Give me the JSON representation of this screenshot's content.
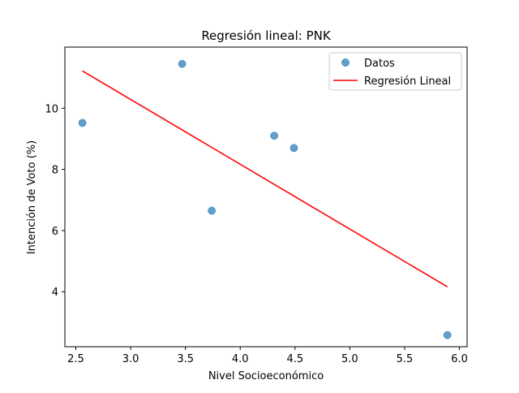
{
  "chart_data": {
    "type": "scatter",
    "title": "Regresión lineal: PNK",
    "xlabel": "Nivel Socioeconómico",
    "ylabel": "Intención de Voto (%)",
    "xlim": [
      2.4,
      6.07
    ],
    "ylim": [
      2.2,
      12.0
    ],
    "xticks": [
      2.5,
      3.0,
      3.5,
      4.0,
      4.5,
      5.0,
      5.5,
      6.0
    ],
    "xtick_labels": [
      "2.5",
      "3.0",
      "3.5",
      "4.0",
      "4.5",
      "5.0",
      "5.5",
      "6.0"
    ],
    "yticks": [
      4,
      6,
      8,
      10
    ],
    "ytick_labels": [
      "4",
      "6",
      "8",
      "10"
    ],
    "grid": false,
    "legend_position": "top-right",
    "series": [
      {
        "name": "Datos",
        "kind": "scatter",
        "color": "#1f77b4",
        "points": [
          {
            "x": 2.56,
            "y": 9.52
          },
          {
            "x": 3.47,
            "y": 11.45
          },
          {
            "x": 3.74,
            "y": 6.65
          },
          {
            "x": 4.31,
            "y": 9.1
          },
          {
            "x": 4.49,
            "y": 8.7
          },
          {
            "x": 5.89,
            "y": 2.58
          }
        ]
      },
      {
        "name": "Regresión Lineal",
        "kind": "line",
        "color": "#ff0000",
        "points": [
          {
            "x": 2.56,
            "y": 11.22
          },
          {
            "x": 5.89,
            "y": 4.16
          }
        ]
      }
    ]
  }
}
